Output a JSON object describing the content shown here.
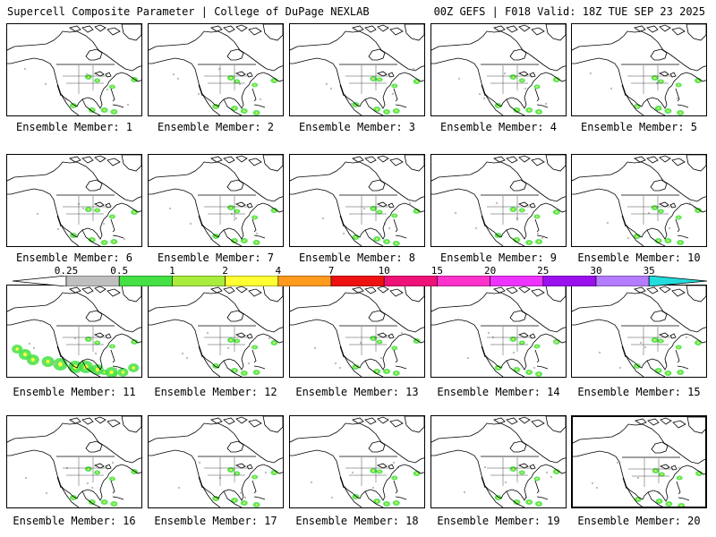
{
  "header": {
    "left_title": "Supercell Composite Parameter | College of DuPage NEXLAB",
    "right_title": "00Z GEFS | F018 Valid: 18Z TUE SEP 23 2025"
  },
  "colorbar": {
    "ticks": [
      "0.25",
      "0.5",
      "1",
      "2",
      "4",
      "7",
      "10",
      "15",
      "20",
      "25",
      "30",
      "35"
    ],
    "colors": [
      "#bfbfbf",
      "#44e044",
      "#a8ec3c",
      "#ffff33",
      "#ff9a1f",
      "#ee1111",
      "#ee1177",
      "#ff33cc",
      "#ee33ff",
      "#9b11ee",
      "#b57cff",
      "#22dddd"
    ]
  },
  "members": [
    {
      "label": "Ensemble Member: 1"
    },
    {
      "label": "Ensemble Member: 2"
    },
    {
      "label": "Ensemble Member: 3"
    },
    {
      "label": "Ensemble Member: 4"
    },
    {
      "label": "Ensemble Member: 5"
    },
    {
      "label": "Ensemble Member: 6"
    },
    {
      "label": "Ensemble Member: 7"
    },
    {
      "label": "Ensemble Member: 8"
    },
    {
      "label": "Ensemble Member: 9"
    },
    {
      "label": "Ensemble Member: 10"
    },
    {
      "label": "Ensemble Member: 11"
    },
    {
      "label": "Ensemble Member: 12"
    },
    {
      "label": "Ensemble Member: 13"
    },
    {
      "label": "Ensemble Member: 14"
    },
    {
      "label": "Ensemble Member: 15"
    },
    {
      "label": "Ensemble Member: 16"
    },
    {
      "label": "Ensemble Member: 17"
    },
    {
      "label": "Ensemble Member: 18"
    },
    {
      "label": "Ensemble Member: 19"
    },
    {
      "label": "Ensemble Member: 20"
    }
  ]
}
